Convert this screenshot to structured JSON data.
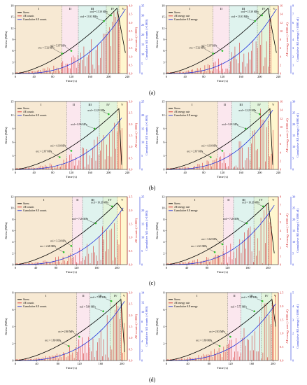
{
  "figure": {
    "row_labels": [
      "(a)",
      "(b)",
      "(c)",
      "(d)"
    ]
  },
  "colors": {
    "stress": "#000000",
    "ae": "#d62728",
    "cumulative": "#2233dd",
    "stage_I": "#f7e9d3",
    "stage_II": "#fbe7ee",
    "stage_III": "#dff3ee",
    "stage_IV": "#e2f4dc",
    "stage_V": "#fff7cf",
    "marker": "#33cc33"
  },
  "chart_data": [
    {
      "id": "a-left",
      "type": "line",
      "xlabel": "Time (s)",
      "ylabel_left": "Stress (MPa)",
      "ylabel_right1": "AE counts (×1000)",
      "ylabel_right2": "Cumulative AE counts (×1000)",
      "xlim": [
        0,
        240
      ],
      "xticks": [
        0,
        40,
        80,
        120,
        160,
        200,
        240
      ],
      "ylim": [
        0,
        18
      ],
      "yticks": [
        0,
        3,
        6,
        9,
        12,
        15,
        18
      ],
      "right1_ticks": [
        "0.0",
        "0.5",
        "1.0",
        "1.5",
        "2.0",
        "2.5",
        "3.0",
        "3.5",
        "4.0"
      ],
      "right2_ticks": [
        "0",
        "5",
        "10",
        "15",
        "20",
        "25",
        "30",
        "35"
      ],
      "stages": [
        "I",
        "II",
        "III",
        "IV",
        "V"
      ],
      "stage_bounds": [
        0,
        100,
        135,
        195,
        222,
        240
      ],
      "legend": [
        "Stress",
        "AE counts",
        "Cumulative AE counts"
      ],
      "annotations": [
        {
          "text": "σcd = 15.39 MPa",
          "x": 205,
          "y": 15.4
        },
        {
          "text": "σcd = 13.93 MPa",
          "x": 190,
          "y": 13.9
        },
        {
          "text": "σci = 5.97 MPa",
          "x": 120,
          "y": 6
        },
        {
          "text": "σcc = 5.32 MPa",
          "x": 100,
          "y": 5.3
        }
      ],
      "peak": {
        "x": 218,
        "y": 17.3
      },
      "drop_end": {
        "x": 236,
        "y": 5.5
      },
      "cum_max": 2.5,
      "ae_peak": 0.95
    },
    {
      "id": "a-right",
      "type": "line",
      "xlabel": "Time (s)",
      "ylabel_left": "Stress (MPa)",
      "ylabel_right1": "AE energy rate (×1000 aJ)",
      "ylabel_right2": "Cumulative AE energy (×1000 aJ)",
      "xlim": [
        0,
        240
      ],
      "xticks": [
        0,
        40,
        80,
        120,
        160,
        200,
        240
      ],
      "ylim": [
        0,
        18
      ],
      "yticks": [
        0,
        3,
        6,
        9,
        12,
        15,
        18
      ],
      "right1_ticks": [
        "0",
        "2",
        "4",
        "6",
        "8",
        "10",
        "12",
        "14",
        "16"
      ],
      "right2_ticks": [
        "0",
        "1",
        "2",
        "3",
        "4",
        "5",
        "6",
        "7",
        "8"
      ],
      "stages": [
        "I",
        "II",
        "III",
        "IV",
        "V"
      ],
      "stage_bounds": [
        0,
        100,
        135,
        195,
        222,
        240
      ],
      "legend": [
        "Stress",
        "AE energy rate",
        "Cumulative AE energy"
      ],
      "annotations": [
        {
          "text": "σcd = 15.39 MPa",
          "x": 205,
          "y": 15.4
        },
        {
          "text": "σcd = 13.93 MPa",
          "x": 190,
          "y": 13.9
        },
        {
          "text": "σci = 5.97 MPa",
          "x": 120,
          "y": 6
        },
        {
          "text": "σcc = 5.32 MPa",
          "x": 100,
          "y": 5.3
        }
      ],
      "peak": {
        "x": 218,
        "y": 17.3
      },
      "drop_end": {
        "x": 236,
        "y": 5.5
      },
      "cum_max": 2.5,
      "ae_peak": 0.9
    },
    {
      "id": "b-left",
      "type": "line",
      "xlabel": "Time (s)",
      "ylabel_left": "Stress (MPa)",
      "ylabel_right1": "AE counts (×1000)",
      "ylabel_right2": "Cumulative AE counts (×1000)",
      "xlim": [
        0,
        240
      ],
      "xticks": [
        0,
        40,
        80,
        120,
        160,
        200,
        240
      ],
      "ylim": [
        0,
        15
      ],
      "yticks": [
        0,
        3,
        6,
        9,
        12,
        15
      ],
      "right1_ticks": [
        "0.0",
        "0.5",
        "1.0",
        "1.5",
        "2.0",
        "2.5",
        "3.0"
      ],
      "right2_ticks": [
        "0",
        "5",
        "10",
        "15",
        "20",
        "25"
      ],
      "stages": [
        "I",
        "II",
        "III",
        "IV",
        "V"
      ],
      "stage_bounds": [
        0,
        110,
        140,
        180,
        218,
        240
      ],
      "legend": [
        "Stress",
        "AE counts",
        "Cumulative AE counts"
      ],
      "annotations": [
        {
          "text": "σcd = 12.23 MPa",
          "x": 200,
          "y": 12.2
        },
        {
          "text": "σcd = 8.96 MPa",
          "x": 170,
          "y": 9
        },
        {
          "text": "σci = 4.10 MPa",
          "x": 120,
          "y": 4.1
        },
        {
          "text": "σcc = 2.67 MPa",
          "x": 95,
          "y": 2.7
        }
      ],
      "peak": {
        "x": 222,
        "y": 13.4
      },
      "drop_end": {
        "x": 228,
        "y": 1.0
      },
      "cum_max": 2.0,
      "ae_peak": 0.85
    },
    {
      "id": "b-right",
      "type": "line",
      "xlabel": "Time (s)",
      "ylabel_left": "Stress (MPa)",
      "ylabel_right1": "AE energy rate (×1000 aJ)",
      "ylabel_right2": "Cumulative AE energy (×1000 aJ)",
      "xlim": [
        0,
        240
      ],
      "xticks": [
        0,
        40,
        80,
        120,
        160,
        200,
        240
      ],
      "ylim": [
        0,
        15
      ],
      "yticks": [
        0,
        3,
        6,
        9,
        12,
        15
      ],
      "right1_ticks": [
        "0",
        "2",
        "4",
        "6",
        "8",
        "10",
        "12",
        "14",
        "16"
      ],
      "right2_ticks": [
        "0",
        "5",
        "10",
        "15",
        "20",
        "25",
        "30"
      ],
      "stages": [
        "I",
        "II",
        "III",
        "IV",
        "V"
      ],
      "stage_bounds": [
        0,
        110,
        140,
        180,
        218,
        240
      ],
      "legend": [
        "Stress",
        "AE energy rate",
        "Cumulative AE energy"
      ],
      "annotations": [
        {
          "text": "σcd = 12.23 MPa",
          "x": 200,
          "y": 12.2
        },
        {
          "text": "σcd = 9.01 MPa",
          "x": 170,
          "y": 9
        },
        {
          "text": "σci = 4.10 MPa",
          "x": 120,
          "y": 4.1
        },
        {
          "text": "σcc = 2.67 MPa",
          "x": 95,
          "y": 2.7
        }
      ],
      "peak": {
        "x": 222,
        "y": 13.4
      },
      "drop_end": {
        "x": 228,
        "y": 1.0
      },
      "cum_max": 2.3,
      "ae_peak": 0.9
    },
    {
      "id": "c-left",
      "type": "line",
      "xlabel": "Time (s)",
      "ylabel_left": "Stress (MPa)",
      "ylabel_right1": "AE counts (×1000)",
      "ylabel_right2": "Cumulative AE counts (×1000)",
      "xlim": [
        0,
        220
      ],
      "xticks": [
        0,
        40,
        80,
        120,
        160,
        200
      ],
      "ylim": [
        0,
        12
      ],
      "yticks": [
        0,
        2,
        4,
        6,
        8,
        10,
        12
      ],
      "right1_ticks": [
        "0.0",
        "0.5",
        "1.0",
        "1.5",
        "2.0",
        "2.5"
      ],
      "right2_ticks": [
        "0",
        "5",
        "10",
        "15",
        "20",
        "25"
      ],
      "stages": [
        "I",
        "II",
        "III",
        "IV",
        "V"
      ],
      "stage_bounds": [
        0,
        112,
        132,
        172,
        200,
        220
      ],
      "legend": [
        "Stress",
        "AE counts",
        "Cumulative AE counts"
      ],
      "annotations": [
        {
          "text": "σcd = 10.26 MPa",
          "x": 190,
          "y": 10.3
        },
        {
          "text": "σcd = 7.28 MPa",
          "x": 158,
          "y": 7.3
        },
        {
          "text": "σci = 3.33 MPa",
          "x": 110,
          "y": 3.3
        },
        {
          "text": "σcc = 2.20 MPa",
          "x": 95,
          "y": 2.2
        }
      ],
      "peak": {
        "x": 200,
        "y": 10.9
      },
      "drop_end": {
        "x": 212,
        "y": 9.5
      },
      "cum_max": 2.2,
      "ae_peak": 0.8
    },
    {
      "id": "c-right",
      "type": "line",
      "xlabel": "Time (s)",
      "ylabel_left": "Stress (MPa)",
      "ylabel_right1": "AE energy rate (×1000 aJ)",
      "ylabel_right2": "Cumulative AE energy (×1000 aJ)",
      "xlim": [
        0,
        220
      ],
      "xticks": [
        0,
        40,
        80,
        120,
        160,
        200
      ],
      "ylim": [
        0,
        12
      ],
      "yticks": [
        0,
        2,
        4,
        6,
        8,
        10,
        12
      ],
      "right1_ticks": [
        "0",
        "1",
        "2",
        "3",
        "4",
        "5",
        "6",
        "7",
        "8"
      ],
      "right2_ticks": [
        "0",
        "5",
        "10",
        "15",
        "20",
        "25",
        "30"
      ],
      "stages": [
        "I",
        "II",
        "III",
        "IV",
        "V"
      ],
      "stage_bounds": [
        0,
        112,
        132,
        172,
        200,
        220
      ],
      "legend": [
        "Stress",
        "AE energy rate",
        "Cumulative AE energy"
      ],
      "annotations": [
        {
          "text": "σcd = 10.26 MPa",
          "x": 190,
          "y": 10.3
        },
        {
          "text": "σcd = 7.28 MPa",
          "x": 158,
          "y": 7.3
        },
        {
          "text": "σci = 3.62 MPa",
          "x": 110,
          "y": 3.6
        },
        {
          "text": "σcc = 2.21 MPa",
          "x": 95,
          "y": 2.2
        }
      ],
      "peak": {
        "x": 200,
        "y": 10.9
      },
      "drop_end": {
        "x": 212,
        "y": 2.0
      },
      "cum_max": 2.3,
      "ae_peak": 0.9
    },
    {
      "id": "d-left",
      "type": "line",
      "xlabel": "Time (s)",
      "ylabel_left": "Stress (MPa)",
      "ylabel_right1": "AE counts (×1000)",
      "ylabel_right2": "Cumulative AE counts (×1000)",
      "xlim": [
        0,
        210
      ],
      "xticks": [
        0,
        40,
        80,
        120,
        160,
        200
      ],
      "ylim": [
        0,
        8
      ],
      "yticks": [
        0,
        2,
        4,
        6,
        8
      ],
      "right1_ticks": [
        "0.0",
        "0.5",
        "1.0",
        "1.5",
        "2.0",
        "2.5",
        "3.0"
      ],
      "right2_ticks": [
        "0",
        "2",
        "4",
        "6",
        "8",
        "10",
        "12",
        "14"
      ],
      "stages": [
        "I",
        "II",
        "III",
        "IV",
        "V"
      ],
      "stage_bounds": [
        0,
        115,
        140,
        178,
        198,
        210
      ],
      "legend": [
        "Stress",
        "AE counts",
        "Cumulative AE counts"
      ],
      "annotations": [
        {
          "text": "σcd = 7.02 MPa",
          "x": 180,
          "y": 7.0
        },
        {
          "text": "σcd = 5.84 MPa",
          "x": 165,
          "y": 5.8
        },
        {
          "text": "σci = 2.80 MPa",
          "x": 120,
          "y": 2.8
        },
        {
          "text": "σcc = 1.69 MPa",
          "x": 100,
          "y": 1.7
        }
      ],
      "peak": {
        "x": 198,
        "y": 7.2
      },
      "drop_end": {
        "x": 205,
        "y": 1.0
      },
      "cum_max": 2.3,
      "ae_peak": 0.9
    },
    {
      "id": "d-right",
      "type": "line",
      "xlabel": "Time (s)",
      "ylabel_left": "Stress (MPa)",
      "ylabel_right1": "AE energy rate (×1000 aJ)",
      "ylabel_right2": "Cumulative AE energy (×1000 aJ)",
      "xlim": [
        0,
        210
      ],
      "xticks": [
        0,
        40,
        80,
        120,
        160,
        200
      ],
      "ylim": [
        0,
        8
      ],
      "yticks": [
        0,
        2,
        4,
        6,
        8
      ],
      "right1_ticks": [
        "0.0",
        "0.5",
        "1.0",
        "1.5",
        "2.0",
        "2.5"
      ],
      "right2_ticks": [
        "0",
        "1",
        "2",
        "3",
        "4",
        "5"
      ],
      "stages": [
        "I",
        "II",
        "III",
        "IV",
        "V"
      ],
      "stage_bounds": [
        0,
        115,
        140,
        178,
        198,
        210
      ],
      "legend": [
        "Stress",
        "AE energy rate",
        "Cumulative AE energy"
      ],
      "annotations": [
        {
          "text": "σcd = 7.02 MPa",
          "x": 180,
          "y": 7.0
        },
        {
          "text": "σcd = 5.75 MPa",
          "x": 165,
          "y": 5.8
        },
        {
          "text": "σci = 2.83 MPa",
          "x": 120,
          "y": 2.8
        },
        {
          "text": "σcc = 1.69 MPa",
          "x": 100,
          "y": 1.7
        }
      ],
      "peak": {
        "x": 198,
        "y": 7.2
      },
      "drop_end": {
        "x": 205,
        "y": 4.0
      },
      "cum_max": 2.2,
      "ae_peak": 0.9
    }
  ]
}
